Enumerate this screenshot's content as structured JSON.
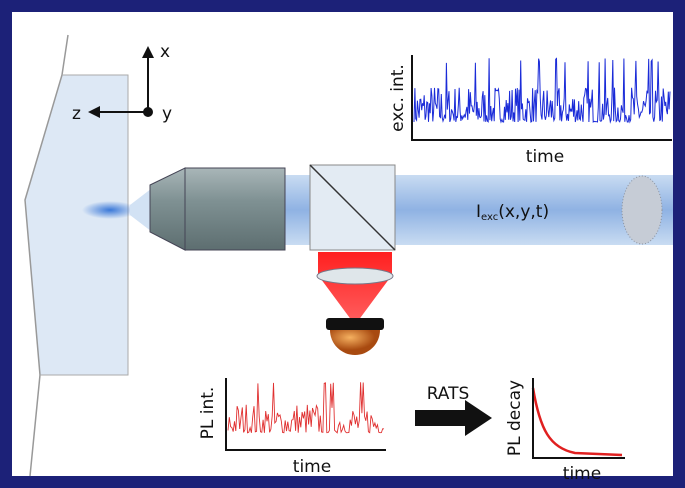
{
  "axes": {
    "x": "x",
    "y": "y",
    "z": "z"
  },
  "excitation_plot": {
    "ylabel": "exc. int.",
    "xlabel": "time"
  },
  "beam_label": {
    "symbol": "I",
    "subscript": "exc",
    "args": "(x,y,t)"
  },
  "pl_plot": {
    "ylabel": "PL int.",
    "xlabel": "time"
  },
  "arrow_label": "RATS",
  "decay_plot": {
    "ylabel": "PL decay",
    "xlabel": "time"
  }
}
